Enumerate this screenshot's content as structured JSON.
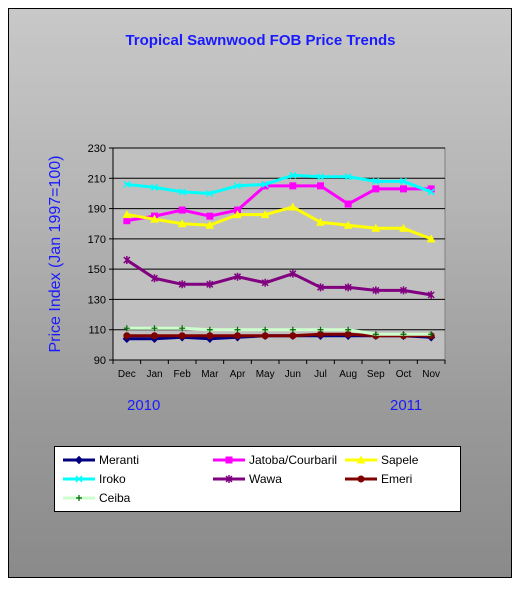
{
  "chart_data": {
    "type": "line",
    "title": "Tropical Sawnwood FOB Price Trends",
    "ylabel": "Price Index  (Jan 1997=100)",
    "xlabel": "",
    "categories": [
      "Dec",
      "Jan",
      "Feb",
      "Mar",
      "Apr",
      "May",
      "Jun",
      "Jul",
      "Aug",
      "Sep",
      "Oct",
      "Nov"
    ],
    "year_labels": [
      "2010",
      "2011"
    ],
    "ylim": [
      90,
      230
    ],
    "yticks": [
      90,
      110,
      130,
      150,
      170,
      190,
      210,
      230
    ],
    "grid": "horizontal",
    "legend_position": "bottom",
    "series": [
      {
        "name": "Meranti",
        "color": "#000080",
        "marker": "diamond",
        "values": [
          104,
          104,
          105,
          104,
          105,
          106,
          106,
          106,
          106,
          106,
          106,
          105
        ]
      },
      {
        "name": "Jatoba/Courbaril",
        "color": "#ff00ff",
        "marker": "square",
        "values": [
          182,
          185,
          189,
          185,
          189,
          205,
          205,
          205,
          193,
          203,
          203,
          203
        ]
      },
      {
        "name": "Sapele",
        "color": "#ffff00",
        "marker": "triangle",
        "values": [
          186,
          183,
          180,
          179,
          186,
          186,
          191,
          181,
          179,
          177,
          177,
          170
        ]
      },
      {
        "name": "Iroko",
        "color": "#00ffff",
        "marker": "x",
        "values": [
          206,
          204,
          201,
          200,
          205,
          206,
          212,
          211,
          211,
          208,
          208,
          201
        ]
      },
      {
        "name": "Wawa",
        "color": "#800080",
        "marker": "star",
        "values": [
          156,
          144,
          140,
          140,
          145,
          141,
          147,
          138,
          138,
          136,
          136,
          133
        ]
      },
      {
        "name": "Emeri",
        "color": "#800000",
        "marker": "circle",
        "values": [
          106,
          106,
          106,
          106,
          106,
          106,
          106,
          107,
          107,
          106,
          106,
          106
        ]
      },
      {
        "name": "Ceiba",
        "color": "#ccffcc",
        "marker": "plus",
        "values": [
          111,
          111,
          111,
          110,
          110,
          110,
          110,
          110,
          110,
          107,
          107,
          107
        ]
      }
    ]
  }
}
